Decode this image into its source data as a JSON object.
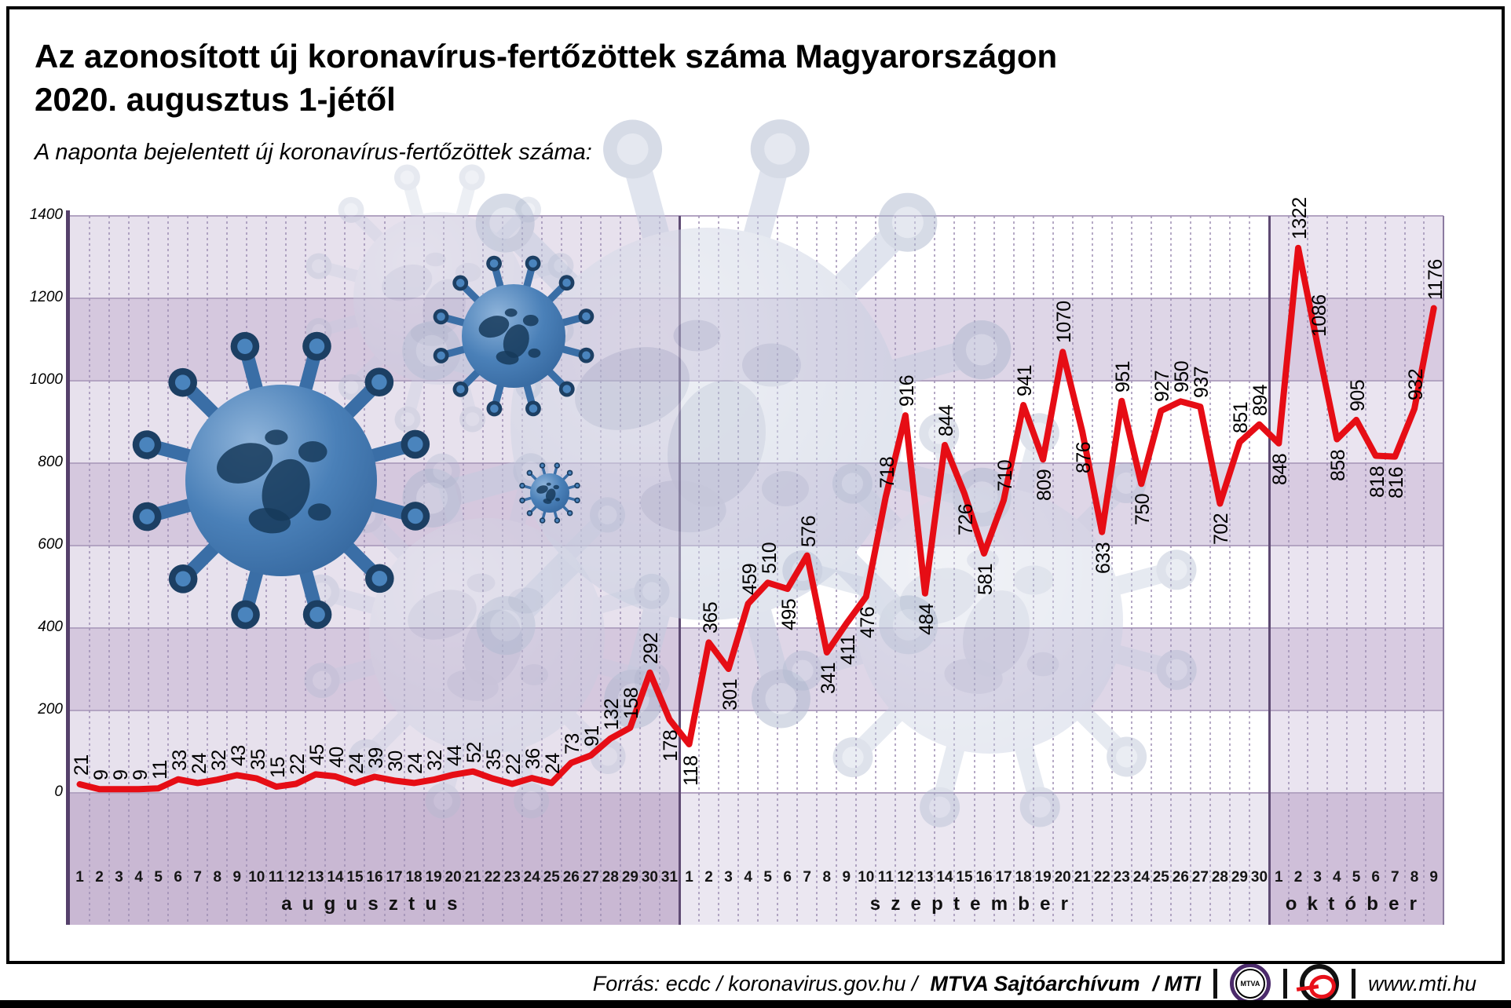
{
  "title_line1": "Az azonosított új koronavírus-fertőzöttek száma Magyarországon",
  "title_line2": "2020. augusztus 1-jétől",
  "subtitle": "A naponta bejelentett új koronavírus-fertőzöttek száma:",
  "chart_data": {
    "type": "line",
    "title": "Az azonosított új koronavírus-fertőzöttek száma Magyarországon 2020. augusztus 1-jétől",
    "ylabel": "",
    "xlabel": "",
    "ylim": [
      0,
      1400
    ],
    "yticks": [
      0,
      200,
      400,
      600,
      800,
      1000,
      1200,
      1400
    ],
    "grid": "on",
    "legend": "none",
    "line_color": "#e60d15",
    "months": [
      {
        "name": "augusztus",
        "days": [
          1,
          2,
          3,
          4,
          5,
          6,
          7,
          8,
          9,
          10,
          11,
          12,
          13,
          14,
          15,
          16,
          17,
          18,
          19,
          20,
          21,
          22,
          23,
          24,
          25,
          26,
          27,
          28,
          29,
          30,
          31
        ],
        "values": [
          21,
          9,
          9,
          9,
          11,
          33,
          24,
          32,
          43,
          35,
          15,
          22,
          45,
          40,
          24,
          39,
          30,
          24,
          32,
          44,
          52,
          35,
          22,
          36,
          24,
          73,
          91,
          132,
          158,
          292,
          178
        ],
        "label_side": [
          "a",
          "a",
          "a",
          "a",
          "a",
          "a",
          "a",
          "a",
          "a",
          "a",
          "a",
          "a",
          "a",
          "a",
          "a",
          "a",
          "a",
          "a",
          "a",
          "a",
          "a",
          "a",
          "a",
          "a",
          "a",
          "a",
          "a",
          "a",
          "a",
          "a",
          "b"
        ],
        "band_even": "#e7e1ed",
        "band_odd": "#d5c8de",
        "band_below": "#c9b8d3"
      },
      {
        "name": "szeptember",
        "days": [
          1,
          2,
          3,
          4,
          5,
          6,
          7,
          8,
          9,
          10,
          11,
          12,
          13,
          14,
          15,
          16,
          17,
          18,
          19,
          20,
          21,
          22,
          23,
          24,
          25,
          26,
          27,
          28,
          29,
          30
        ],
        "values": [
          118,
          365,
          301,
          459,
          510,
          495,
          576,
          341,
          411,
          476,
          718,
          916,
          484,
          844,
          726,
          581,
          710,
          941,
          809,
          1070,
          876,
          633,
          951,
          750,
          927,
          950,
          937,
          702,
          851,
          894
        ],
        "label_side": [
          "b",
          "a",
          "b",
          "a",
          "a",
          "b",
          "a",
          "b",
          "b",
          "b",
          "a",
          "a",
          "b",
          "a",
          "b",
          "b",
          "a",
          "a",
          "b",
          "a",
          "b",
          "b",
          "a",
          "b",
          "a",
          "a",
          "a",
          "b",
          "a",
          "a"
        ],
        "band_even": "#ffffff",
        "band_odd": "#ded6e7",
        "band_below": "#ebe7f1"
      },
      {
        "name": "október",
        "days": [
          1,
          2,
          3,
          4,
          5,
          6,
          7,
          8,
          9
        ],
        "values": [
          848,
          1322,
          1086,
          858,
          905,
          818,
          816,
          932,
          1176
        ],
        "label_side": [
          "b",
          "a",
          "a",
          "b",
          "a",
          "b",
          "b",
          "a",
          "a"
        ],
        "band_even": "#eae4f0",
        "band_odd": "#d8cbe1",
        "band_below": "#cfbfd9"
      }
    ]
  },
  "footer": {
    "source_italic": "Forrás: ecdc / koronavirus.gov.hu /",
    "source_bold": "MTVA Sajtóarchívum",
    "source_bold2": "/ MTI",
    "mtva_logo_text": "MTVA",
    "website": "www.mti.hu"
  }
}
